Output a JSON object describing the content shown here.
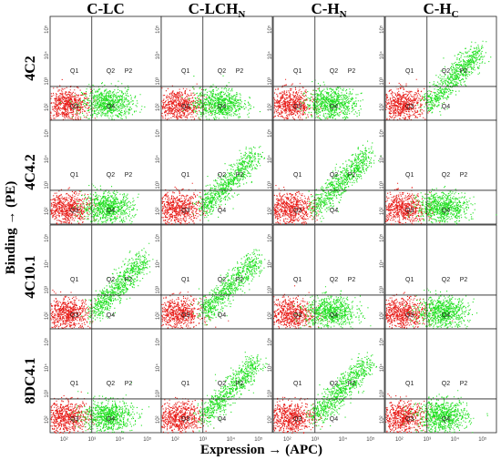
{
  "columns": [
    {
      "main": "C-LC",
      "sub": ""
    },
    {
      "main": "C-LCH",
      "sub": "N"
    },
    {
      "main": "C-H",
      "sub": "N"
    },
    {
      "main": "C-H",
      "sub": "C"
    }
  ],
  "rows": [
    "4C2",
    "4C4.2",
    "4C10.1",
    "8DC4.1"
  ],
  "x_axis_label": "Expression → (APC)",
  "y_axis_label": "Binding → (PE)",
  "quadrant_labels": [
    "Q1",
    "Q2",
    "P2",
    "Q3",
    "Q4"
  ],
  "x_tick_labels": [
    "10²",
    "10³",
    "10⁴",
    "10⁵"
  ],
  "y_tick_labels": [
    "10²",
    "10³",
    "10⁴",
    "10⁵"
  ],
  "colors": {
    "negative": "#e8201c",
    "positive": "#21e021"
  },
  "chart_data": {
    "type": "scatter",
    "panels_description": "4x4 grid of flow cytometry dot plots; each panel shows log10 APC (expression) on x and log10 PE (binding) on y",
    "xlim_log10": [
      1.5,
      5.5
    ],
    "ylim_log10": [
      1.5,
      5.5
    ],
    "gates": {
      "x_gate_log10": 3.0,
      "y_gate_log10": 2.8
    },
    "panels": [
      {
        "row": "4C2",
        "column": "C-LC",
        "binding": false
      },
      {
        "row": "4C2",
        "column": "C-LCHN",
        "binding": false
      },
      {
        "row": "4C2",
        "column": "C-HN",
        "binding": false
      },
      {
        "row": "4C2",
        "column": "C-HC",
        "binding": true
      },
      {
        "row": "4C4.2",
        "column": "C-LC",
        "binding": false
      },
      {
        "row": "4C4.2",
        "column": "C-LCHN",
        "binding": true
      },
      {
        "row": "4C4.2",
        "column": "C-HN",
        "binding": true
      },
      {
        "row": "4C4.2",
        "column": "C-HC",
        "binding": false
      },
      {
        "row": "4C10.1",
        "column": "C-LC",
        "binding": true
      },
      {
        "row": "4C10.1",
        "column": "C-LCHN",
        "binding": true
      },
      {
        "row": "4C10.1",
        "column": "C-HN",
        "binding": false
      },
      {
        "row": "4C10.1",
        "column": "C-HC",
        "binding": false
      },
      {
        "row": "8DC4.1",
        "column": "C-LC",
        "binding": false
      },
      {
        "row": "8DC4.1",
        "column": "C-LCHN",
        "binding": true
      },
      {
        "row": "8DC4.1",
        "column": "C-HN",
        "binding": true
      },
      {
        "row": "8DC4.1",
        "column": "C-HC",
        "binding": false
      }
    ]
  }
}
